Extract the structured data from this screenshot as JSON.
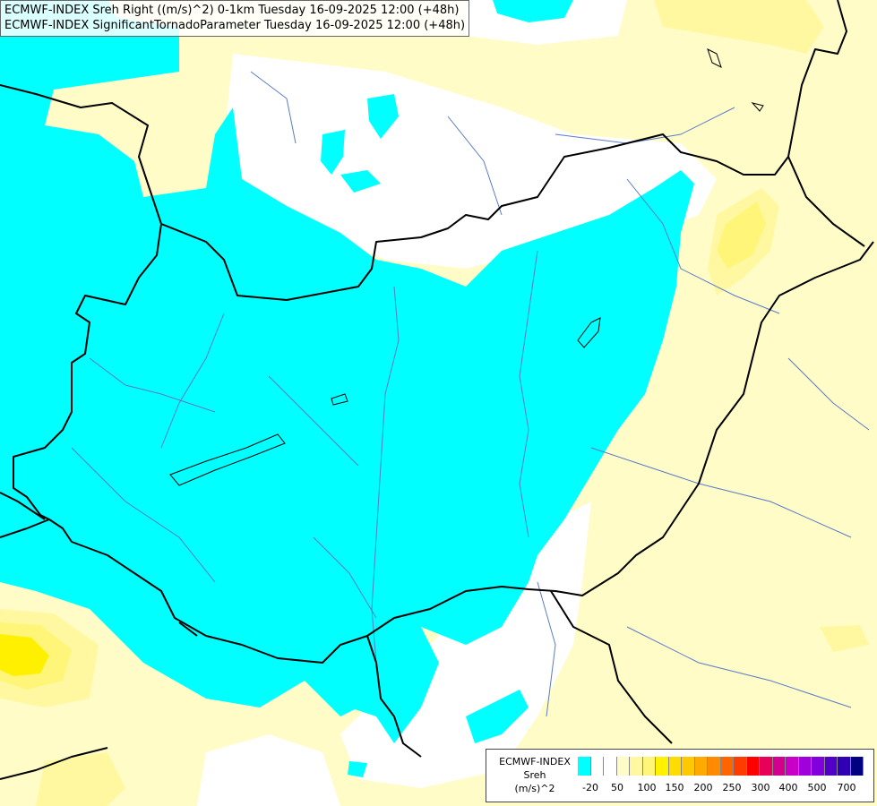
{
  "title": {
    "line1": "ECMWF-INDEX Sreh Right ((m/s)^2) 0-1km Tuesday 16-09-2025 12:00 (+48h)",
    "line2": "ECMWF-INDEX SignificantTornadoParameter Tuesday 16-09-2025 12:00 (+48h)"
  },
  "legend": {
    "line1": "ECMWF-INDEX",
    "line2": "Sreh",
    "line3": "(m/s)^2",
    "colors": [
      "#00ffff",
      "#ffffff",
      "#ffffff",
      "#fffcc8",
      "#fff8a0",
      "#fff578",
      "#fff200",
      "#ffdc00",
      "#ffc800",
      "#ffaa00",
      "#ff8c00",
      "#ff6400",
      "#ff3c00",
      "#ff0000",
      "#e6005a",
      "#d2008c",
      "#c800c8",
      "#a000dc",
      "#8200dc",
      "#5000c8",
      "#3200b4",
      "#000080"
    ],
    "ticks": [
      "-20",
      "50",
      "100",
      "150",
      "200",
      "250",
      "300",
      "400",
      "500",
      "700"
    ]
  },
  "colors": {
    "cyan": "#00ffff",
    "pale_yellow": "#fffcc8",
    "light_yellow": "#fff8a0",
    "yellow": "#fff578",
    "strong_yellow": "#fff000",
    "rivers": "#5a7ac8",
    "borders": "#000000"
  }
}
